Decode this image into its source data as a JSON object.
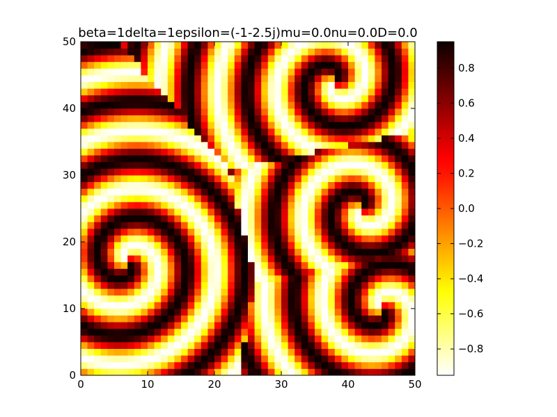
{
  "chart_data": [
    {
      "type": "heatmap",
      "title": "beta=1delta=1epsilon=(-1-2.5j)mu=0.0nu=0.0D=0.0",
      "xlabel": "",
      "ylabel": "",
      "xlim": [
        0,
        50
      ],
      "ylim": [
        0,
        50
      ],
      "grid_size": [
        50,
        50
      ],
      "colormap": "hot_r",
      "grid": false,
      "x_ticks": [
        0,
        10,
        20,
        30,
        40,
        50
      ],
      "y_ticks": [
        0,
        10,
        20,
        30,
        40,
        50
      ],
      "x_tick_labels": [
        "0",
        "10",
        "20",
        "30",
        "40",
        "50"
      ],
      "y_tick_labels": [
        "0",
        "10",
        "20",
        "30",
        "40",
        "50"
      ],
      "value_range": [
        -0.95,
        0.95
      ],
      "spiral_cores": [
        {
          "x": 7,
          "y": 17,
          "sense": "counterclockwise"
        },
        {
          "x": 38,
          "y": 44,
          "sense": "clockwise"
        },
        {
          "x": 42,
          "y": 25,
          "sense": "clockwise"
        },
        {
          "x": 45,
          "y": 10,
          "sense": "counterclockwise"
        }
      ],
      "colorbar": {
        "ticks": [
          -0.8,
          -0.6,
          -0.4,
          -0.2,
          0.0,
          0.2,
          0.4,
          0.6,
          0.8
        ],
        "tick_labels": [
          "−0.8",
          "−0.6",
          "−0.4",
          "−0.2",
          "0.0",
          "0.2",
          "0.4",
          "0.6",
          "0.8"
        ],
        "range": [
          -0.95,
          0.95
        ]
      }
    }
  ]
}
